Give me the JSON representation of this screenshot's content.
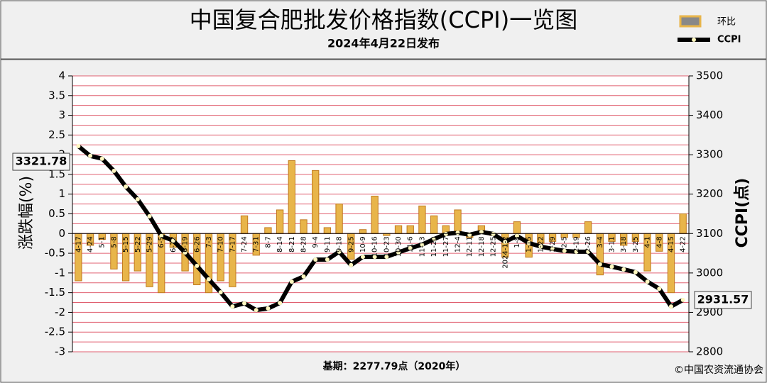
{
  "chart_data": {
    "type": "bar_line",
    "title": "中国复合肥批发价格指数(CCPI)一览图",
    "subtitle": "2024年4月22日发布",
    "ylabel": "涨跌幅(%)",
    "y2label": "CCPI(点)",
    "footer": "基期：2277.79点（2020年）",
    "source": "©中国农资流通协会",
    "categories": [
      "4-17",
      "4-24",
      "5-1",
      "5-8",
      "5-15",
      "5-22",
      "5-29",
      "6-5",
      "6-12",
      "6-19",
      "6-26",
      "7-3",
      "7-10",
      "7-17",
      "7-24",
      "7-31",
      "8-7",
      "8-14",
      "8-21",
      "8-28",
      "9-4",
      "9-11",
      "9-18",
      "9-25",
      "10-9",
      "10-16",
      "10-23",
      "10-30",
      "11-6",
      "11-13",
      "11-20",
      "11-27",
      "12-4",
      "12-11",
      "12-18",
      "12-25",
      "2024-1-2",
      "1-8",
      "1-15",
      "1-22",
      "1-29",
      "2-5",
      "2-19",
      "2-26",
      "3-4",
      "3-11",
      "3-18",
      "3-25",
      "4-1",
      "4-8",
      "4-15",
      "4-22"
    ],
    "series": [
      {
        "name": "环比",
        "color": "#e8b54a",
        "values": [
          -1.2,
          -0.3,
          -0.15,
          -0.9,
          -1.2,
          -0.95,
          -1.35,
          -1.5,
          -0.35,
          -0.95,
          -1.3,
          -1.5,
          -1.2,
          -1.35,
          0.45,
          -0.55,
          0.15,
          0.6,
          1.85,
          0.35,
          1.6,
          0.15,
          0.75,
          -0.65,
          0.1,
          0.95,
          -0.05,
          0.2,
          0.2,
          0.7,
          0.45,
          0.2,
          0.6,
          -0.1,
          0.2,
          -0.05,
          -0.6,
          0.3,
          -0.6,
          -0.25,
          -0.2,
          -0.1,
          -0.1,
          0.3,
          -1.05,
          -0.2,
          -0.3,
          -0.2,
          -0.95,
          -0.45,
          -1.5,
          0.5
        ]
      },
      {
        "name": "CCPI",
        "color": "#000000",
        "axis": "y2",
        "values": [
          3321.78,
          3297,
          3290,
          3259,
          3219,
          3187,
          3144,
          3094,
          3082,
          3052,
          3018,
          2984,
          2951,
          2915,
          2923,
          2906,
          2910,
          2924,
          2978,
          2991,
          3034,
          3034,
          3054,
          3020,
          3041,
          3041,
          3041,
          3052,
          3063,
          3072,
          3086,
          3099,
          3102,
          3097,
          3104,
          3099,
          3079,
          3094,
          3076,
          3067,
          3061,
          3056,
          3054,
          3054,
          3022,
          3016,
          3009,
          3002,
          2978,
          2960,
          2915,
          2931.57
        ]
      }
    ],
    "ylim": [
      -3,
      4
    ],
    "yticks": [
      -3,
      -2.5,
      -2,
      -1.5,
      -1,
      -0.5,
      0,
      0.5,
      1,
      1.5,
      2,
      2.5,
      3,
      3.5,
      4
    ],
    "y2lim": [
      2800,
      3500
    ],
    "y2ticks": [
      2800,
      2900,
      3000,
      3100,
      3200,
      3300,
      3400,
      3500
    ],
    "grid": true,
    "grid_color": "#e06070"
  }
}
